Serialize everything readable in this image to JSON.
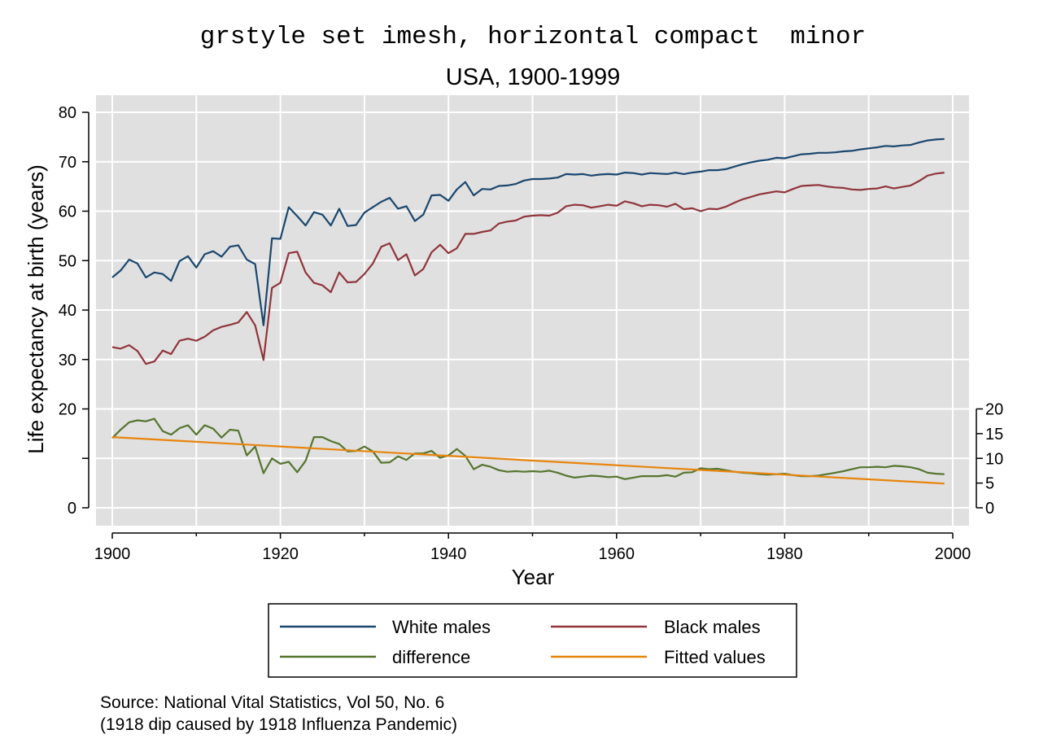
{
  "chart_data": {
    "type": "line",
    "title": "grstyle set imesh, horizontal compact  minor",
    "subtitle": "USA, 1900-1999",
    "xlabel": "Year",
    "ylabel": "Life expectancy at birth (years)",
    "xlim": [
      1900,
      2000
    ],
    "xticks": [
      1900,
      1920,
      1940,
      1960,
      1980,
      2000
    ],
    "ylim": [
      -4,
      84
    ],
    "yticks": [
      0,
      10,
      20,
      30,
      40,
      50,
      60,
      70,
      80
    ],
    "yticklabels": [
      "0",
      "",
      "20",
      "30",
      "40",
      "50",
      "60",
      "70",
      "80"
    ],
    "y2lim": [
      -4,
      84
    ],
    "y2ticks": [
      0,
      5,
      10,
      15,
      20
    ],
    "grid": true,
    "background": "#e0e0e0",
    "legend_position": "bottom",
    "x": [
      1900,
      1901,
      1902,
      1903,
      1904,
      1905,
      1906,
      1907,
      1908,
      1909,
      1910,
      1911,
      1912,
      1913,
      1914,
      1915,
      1916,
      1917,
      1918,
      1919,
      1920,
      1921,
      1922,
      1923,
      1924,
      1925,
      1926,
      1927,
      1928,
      1929,
      1930,
      1931,
      1932,
      1933,
      1934,
      1935,
      1936,
      1937,
      1938,
      1939,
      1940,
      1941,
      1942,
      1943,
      1944,
      1945,
      1946,
      1947,
      1948,
      1949,
      1950,
      1951,
      1952,
      1953,
      1954,
      1955,
      1956,
      1957,
      1958,
      1959,
      1960,
      1961,
      1962,
      1963,
      1964,
      1965,
      1966,
      1967,
      1968,
      1969,
      1970,
      1971,
      1972,
      1973,
      1974,
      1975,
      1976,
      1977,
      1978,
      1979,
      1980,
      1981,
      1982,
      1983,
      1984,
      1985,
      1986,
      1987,
      1988,
      1989,
      1990,
      1991,
      1992,
      1993,
      1994,
      1995,
      1996,
      1997,
      1998,
      1999
    ],
    "series": [
      {
        "name": "White males",
        "color": "#1a476f",
        "axis": "left",
        "values": [
          46.6,
          48.0,
          50.2,
          49.4,
          46.6,
          47.6,
          47.3,
          45.9,
          49.9,
          50.9,
          48.6,
          51.3,
          51.9,
          50.8,
          52.8,
          53.1,
          50.2,
          49.3,
          36.9,
          54.5,
          54.4,
          60.8,
          59.0,
          57.1,
          59.8,
          59.3,
          57.1,
          60.5,
          57.0,
          57.2,
          59.7,
          60.8,
          61.9,
          62.7,
          60.5,
          61.0,
          58.0,
          59.3,
          63.2,
          63.3,
          62.1,
          64.4,
          65.9,
          63.2,
          64.5,
          64.4,
          65.1,
          65.2,
          65.5,
          66.2,
          66.5,
          66.5,
          66.6,
          66.8,
          67.5,
          67.4,
          67.5,
          67.2,
          67.4,
          67.5,
          67.4,
          67.8,
          67.7,
          67.4,
          67.7,
          67.6,
          67.5,
          67.8,
          67.5,
          67.8,
          68.0,
          68.3,
          68.3,
          68.5,
          69.0,
          69.5,
          69.9,
          70.2,
          70.4,
          70.8,
          70.7,
          71.1,
          71.5,
          71.6,
          71.8,
          71.8,
          71.9,
          72.1,
          72.2,
          72.5,
          72.7,
          72.9,
          73.2,
          73.1,
          73.3,
          73.4,
          73.9,
          74.3,
          74.5,
          74.6
        ]
      },
      {
        "name": "Black males",
        "color": "#90353b",
        "axis": "left",
        "values": [
          32.5,
          32.2,
          32.9,
          31.7,
          29.1,
          29.6,
          31.8,
          31.1,
          33.8,
          34.2,
          33.8,
          34.6,
          35.9,
          36.6,
          37.0,
          37.5,
          39.6,
          36.9,
          29.9,
          44.5,
          45.5,
          51.5,
          51.8,
          47.6,
          45.5,
          45.0,
          43.6,
          47.6,
          45.6,
          45.7,
          47.3,
          49.4,
          52.8,
          53.5,
          50.1,
          51.3,
          47.0,
          48.3,
          51.7,
          53.2,
          51.5,
          52.5,
          55.4,
          55.4,
          55.8,
          56.1,
          57.5,
          57.9,
          58.1,
          58.9,
          59.1,
          59.2,
          59.1,
          59.7,
          61.0,
          61.3,
          61.2,
          60.7,
          61.0,
          61.3,
          61.1,
          62.0,
          61.6,
          61.0,
          61.3,
          61.2,
          60.9,
          61.5,
          60.4,
          60.6,
          60.0,
          60.5,
          60.4,
          60.9,
          61.7,
          62.4,
          62.9,
          63.4,
          63.7,
          64.0,
          63.8,
          64.5,
          65.1,
          65.2,
          65.3,
          65.0,
          64.8,
          64.7,
          64.4,
          64.3,
          64.5,
          64.6,
          65.0,
          64.6,
          64.9,
          65.2,
          66.1,
          67.2,
          67.6,
          67.8
        ]
      },
      {
        "name": "difference",
        "color": "#55752f",
        "axis": "right",
        "values": [
          14.1,
          15.8,
          17.3,
          17.7,
          17.5,
          18.0,
          15.5,
          14.8,
          16.1,
          16.7,
          14.8,
          16.7,
          16.0,
          14.2,
          15.8,
          15.6,
          10.6,
          12.4,
          7.0,
          10.0,
          8.9,
          9.3,
          7.2,
          9.5,
          14.3,
          14.3,
          13.5,
          12.9,
          11.4,
          11.5,
          12.4,
          11.4,
          9.1,
          9.2,
          10.4,
          9.7,
          11.0,
          11.0,
          11.5,
          10.1,
          10.6,
          11.9,
          10.5,
          7.8,
          8.7,
          8.3,
          7.6,
          7.3,
          7.4,
          7.3,
          7.4,
          7.3,
          7.5,
          7.1,
          6.5,
          6.1,
          6.3,
          6.5,
          6.4,
          6.2,
          6.3,
          5.8,
          6.1,
          6.4,
          6.4,
          6.4,
          6.6,
          6.3,
          7.1,
          7.2,
          8.0,
          7.8,
          7.9,
          7.6,
          7.3,
          7.1,
          7.0,
          6.8,
          6.7,
          6.8,
          6.9,
          6.6,
          6.4,
          6.4,
          6.5,
          6.8,
          7.1,
          7.4,
          7.8,
          8.2,
          8.2,
          8.3,
          8.2,
          8.5,
          8.4,
          8.2,
          7.8,
          7.1,
          6.9,
          6.8
        ]
      },
      {
        "name": "Fitted values",
        "color": "#e8850c",
        "axis": "right",
        "type": "fitted_line",
        "start": 14.3,
        "end": 4.9
      }
    ]
  },
  "note": {
    "line1": "Source: National Vital Statistics, Vol 50, No. 6",
    "line2": "(1918 dip caused by 1918 Influenza Pandemic)"
  }
}
